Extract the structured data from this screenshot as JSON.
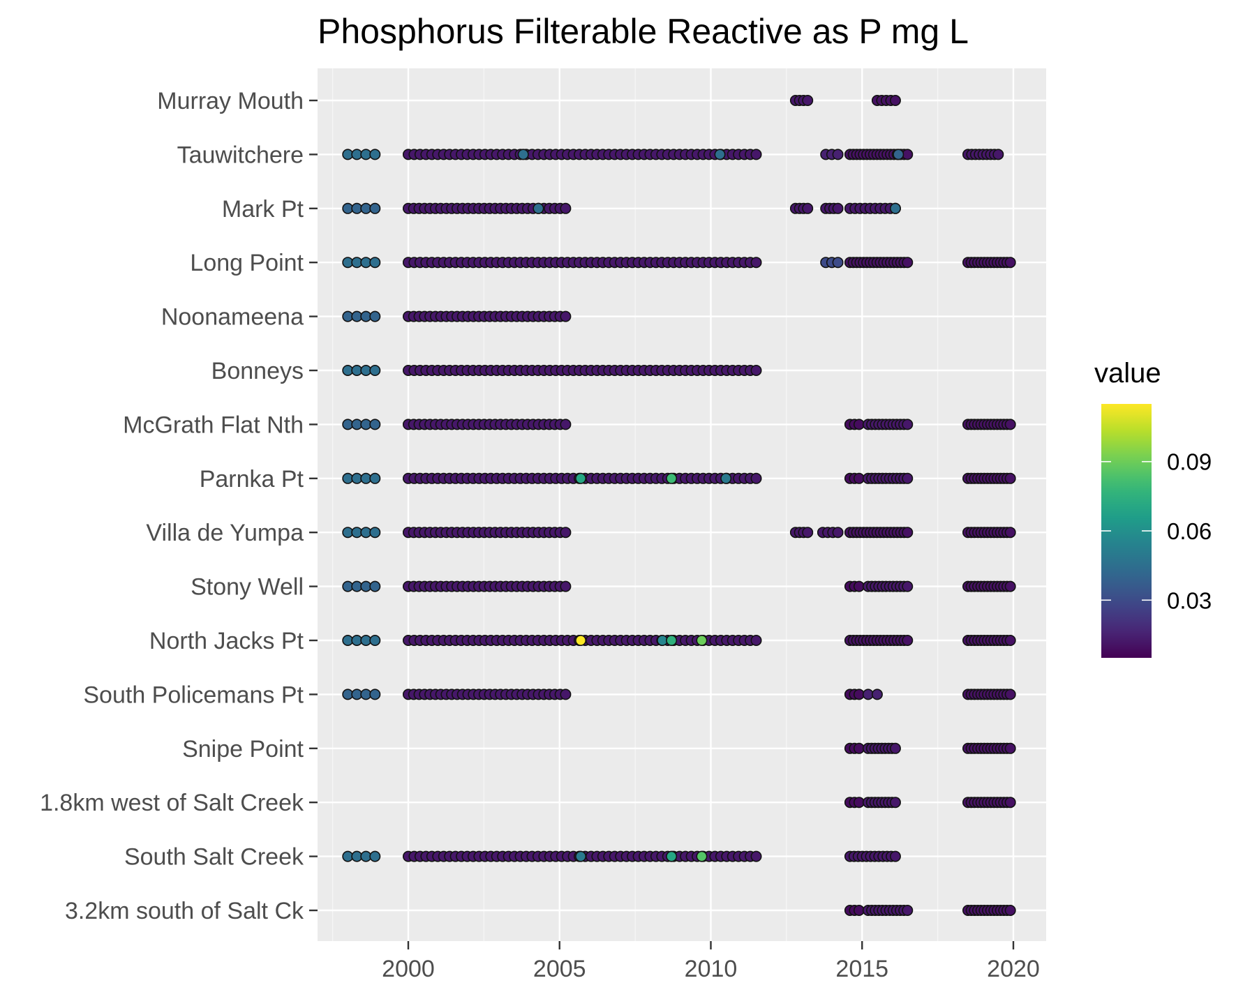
{
  "chart_data": {
    "type": "scatter",
    "title": "Phosphorus Filterable Reactive as P mg L",
    "xlabel": "",
    "ylabel": "",
    "x_ticks": [
      2000,
      2005,
      2010,
      2015,
      2020
    ],
    "xlim": [
      1997.5,
      2020.8
    ],
    "grid": true,
    "legend": {
      "title": "value",
      "position": "right",
      "color_scale": "viridis",
      "range": [
        0.005,
        0.115
      ],
      "ticks": [
        "0.03",
        "0.06",
        "0.09"
      ],
      "tick_values": [
        0.03,
        0.06,
        0.09
      ]
    },
    "categories": [
      "Murray Mouth",
      "Tauwitchere",
      "Mark Pt",
      "Long Point",
      "Noonameena",
      "Bonneys",
      "McGrath Flat Nth",
      "Parnka Pt",
      "Villa de Yumpa",
      "Stony Well",
      "North Jacks Pt",
      "South Policemans Pt",
      "Snipe Point",
      "1.8km west of Salt Creek",
      "South Salt Creek",
      "3.2km south of Salt Ck"
    ],
    "series": [
      {
        "site": "Murray Mouth",
        "segments": [
          {
            "from": 2012.8,
            "to": 2013.2,
            "n": 4,
            "value": 0.012
          },
          {
            "from": 2015.5,
            "to": 2016.1,
            "n": 5,
            "value": 0.01
          }
        ]
      },
      {
        "site": "Tauwitchere",
        "segments": [
          {
            "from": 1998.0,
            "to": 1998.9,
            "n": 4,
            "value": 0.045
          },
          {
            "from": 2000.0,
            "to": 2011.5,
            "n": 60,
            "value": 0.012
          },
          {
            "from": 2013.8,
            "to": 2014.2,
            "n": 3,
            "value": 0.015
          },
          {
            "from": 2014.6,
            "to": 2016.5,
            "n": 18,
            "value": 0.01
          },
          {
            "from": 2018.5,
            "to": 2019.5,
            "n": 9,
            "value": 0.012
          }
        ],
        "highlights": [
          {
            "x": 2003.8,
            "value": 0.045
          },
          {
            "x": 2010.3,
            "value": 0.045
          },
          {
            "x": 2016.2,
            "value": 0.04
          }
        ]
      },
      {
        "site": "Mark Pt",
        "segments": [
          {
            "from": 1998.0,
            "to": 1998.9,
            "n": 4,
            "value": 0.04
          },
          {
            "from": 2000.0,
            "to": 2005.2,
            "n": 30,
            "value": 0.012
          },
          {
            "from": 2012.8,
            "to": 2013.2,
            "n": 4,
            "value": 0.012
          },
          {
            "from": 2013.8,
            "to": 2014.2,
            "n": 4,
            "value": 0.012
          },
          {
            "from": 2014.6,
            "to": 2016.1,
            "n": 10,
            "value": 0.012
          }
        ],
        "highlights": [
          {
            "x": 2004.3,
            "value": 0.045
          },
          {
            "x": 2016.1,
            "value": 0.045
          }
        ]
      },
      {
        "site": "Long Point",
        "segments": [
          {
            "from": 1998.0,
            "to": 1998.9,
            "n": 4,
            "value": 0.045
          },
          {
            "from": 2000.0,
            "to": 2011.5,
            "n": 60,
            "value": 0.012
          },
          {
            "from": 2013.8,
            "to": 2014.2,
            "n": 3,
            "value": 0.03
          },
          {
            "from": 2014.6,
            "to": 2016.5,
            "n": 18,
            "value": 0.01
          },
          {
            "from": 2018.5,
            "to": 2019.9,
            "n": 14,
            "value": 0.01
          }
        ]
      },
      {
        "site": "Noonameena",
        "segments": [
          {
            "from": 1998.0,
            "to": 1998.9,
            "n": 4,
            "value": 0.04
          },
          {
            "from": 2000.0,
            "to": 2005.2,
            "n": 30,
            "value": 0.012
          }
        ]
      },
      {
        "site": "Bonneys",
        "segments": [
          {
            "from": 1998.0,
            "to": 1998.9,
            "n": 4,
            "value": 0.045
          },
          {
            "from": 2000.0,
            "to": 2011.5,
            "n": 60,
            "value": 0.012
          }
        ]
      },
      {
        "site": "McGrath Flat Nth",
        "segments": [
          {
            "from": 1998.0,
            "to": 1998.9,
            "n": 4,
            "value": 0.04
          },
          {
            "from": 2000.0,
            "to": 2005.2,
            "n": 30,
            "value": 0.012
          },
          {
            "from": 2014.6,
            "to": 2014.9,
            "n": 3,
            "value": 0.008
          },
          {
            "from": 2015.2,
            "to": 2016.5,
            "n": 12,
            "value": 0.012
          },
          {
            "from": 2018.5,
            "to": 2019.9,
            "n": 14,
            "value": 0.01
          }
        ]
      },
      {
        "site": "Parnka Pt",
        "segments": [
          {
            "from": 1998.0,
            "to": 1998.9,
            "n": 4,
            "value": 0.045
          },
          {
            "from": 2000.0,
            "to": 2011.5,
            "n": 60,
            "value": 0.012
          },
          {
            "from": 2014.6,
            "to": 2014.9,
            "n": 3,
            "value": 0.008
          },
          {
            "from": 2015.2,
            "to": 2016.5,
            "n": 12,
            "value": 0.012
          },
          {
            "from": 2018.5,
            "to": 2019.9,
            "n": 14,
            "value": 0.01
          }
        ],
        "highlights": [
          {
            "x": 2005.7,
            "value": 0.07
          },
          {
            "x": 2008.7,
            "value": 0.08
          },
          {
            "x": 2010.5,
            "value": 0.05
          }
        ]
      },
      {
        "site": "Villa de Yumpa",
        "segments": [
          {
            "from": 1998.0,
            "to": 1998.9,
            "n": 4,
            "value": 0.045
          },
          {
            "from": 2000.0,
            "to": 2005.2,
            "n": 30,
            "value": 0.012
          },
          {
            "from": 2012.8,
            "to": 2013.2,
            "n": 4,
            "value": 0.012
          },
          {
            "from": 2013.7,
            "to": 2014.2,
            "n": 4,
            "value": 0.012
          },
          {
            "from": 2014.6,
            "to": 2016.5,
            "n": 18,
            "value": 0.01
          },
          {
            "from": 2018.5,
            "to": 2019.9,
            "n": 14,
            "value": 0.01
          }
        ]
      },
      {
        "site": "Stony Well",
        "segments": [
          {
            "from": 1998.0,
            "to": 1998.9,
            "n": 4,
            "value": 0.04
          },
          {
            "from": 2000.0,
            "to": 2005.2,
            "n": 30,
            "value": 0.012
          },
          {
            "from": 2014.6,
            "to": 2014.9,
            "n": 3,
            "value": 0.008
          },
          {
            "from": 2015.2,
            "to": 2016.5,
            "n": 12,
            "value": 0.012
          },
          {
            "from": 2018.5,
            "to": 2019.9,
            "n": 14,
            "value": 0.01
          }
        ]
      },
      {
        "site": "North Jacks Pt",
        "segments": [
          {
            "from": 1998.0,
            "to": 1998.9,
            "n": 4,
            "value": 0.045
          },
          {
            "from": 2000.0,
            "to": 2011.5,
            "n": 60,
            "value": 0.012
          },
          {
            "from": 2014.6,
            "to": 2016.5,
            "n": 18,
            "value": 0.01
          },
          {
            "from": 2018.5,
            "to": 2019.9,
            "n": 14,
            "value": 0.01
          }
        ],
        "highlights": [
          {
            "x": 2005.7,
            "value": 0.115
          },
          {
            "x": 2008.4,
            "value": 0.055
          },
          {
            "x": 2008.7,
            "value": 0.075
          },
          {
            "x": 2009.7,
            "value": 0.09
          }
        ]
      },
      {
        "site": "South Policemans Pt",
        "segments": [
          {
            "from": 1998.0,
            "to": 1998.9,
            "n": 4,
            "value": 0.04
          },
          {
            "from": 2000.0,
            "to": 2005.2,
            "n": 30,
            "value": 0.012
          },
          {
            "from": 2014.6,
            "to": 2014.9,
            "n": 3,
            "value": 0.008
          },
          {
            "from": 2015.2,
            "to": 2015.5,
            "n": 2,
            "value": 0.015
          },
          {
            "from": 2018.5,
            "to": 2019.9,
            "n": 14,
            "value": 0.01
          }
        ]
      },
      {
        "site": "Snipe Point",
        "segments": [
          {
            "from": 2014.6,
            "to": 2014.9,
            "n": 3,
            "value": 0.008
          },
          {
            "from": 2015.2,
            "to": 2016.1,
            "n": 9,
            "value": 0.012
          },
          {
            "from": 2018.5,
            "to": 2019.9,
            "n": 14,
            "value": 0.01
          }
        ]
      },
      {
        "site": "1.8km west of Salt Creek",
        "segments": [
          {
            "from": 2014.6,
            "to": 2014.9,
            "n": 3,
            "value": 0.008
          },
          {
            "from": 2015.2,
            "to": 2016.1,
            "n": 9,
            "value": 0.012
          },
          {
            "from": 2018.5,
            "to": 2019.9,
            "n": 14,
            "value": 0.01
          }
        ]
      },
      {
        "site": "South Salt Creek",
        "segments": [
          {
            "from": 1998.0,
            "to": 1998.9,
            "n": 4,
            "value": 0.045
          },
          {
            "from": 2000.0,
            "to": 2011.5,
            "n": 60,
            "value": 0.012
          },
          {
            "from": 2014.6,
            "to": 2016.1,
            "n": 12,
            "value": 0.012
          }
        ],
        "highlights": [
          {
            "x": 2005.7,
            "value": 0.05
          },
          {
            "x": 2008.7,
            "value": 0.07
          },
          {
            "x": 2009.7,
            "value": 0.085
          }
        ]
      },
      {
        "site": "3.2km south of Salt Ck",
        "segments": [
          {
            "from": 2014.6,
            "to": 2014.9,
            "n": 3,
            "value": 0.008
          },
          {
            "from": 2015.2,
            "to": 2016.5,
            "n": 12,
            "value": 0.012
          },
          {
            "from": 2018.5,
            "to": 2019.9,
            "n": 14,
            "value": 0.01
          }
        ]
      }
    ]
  }
}
